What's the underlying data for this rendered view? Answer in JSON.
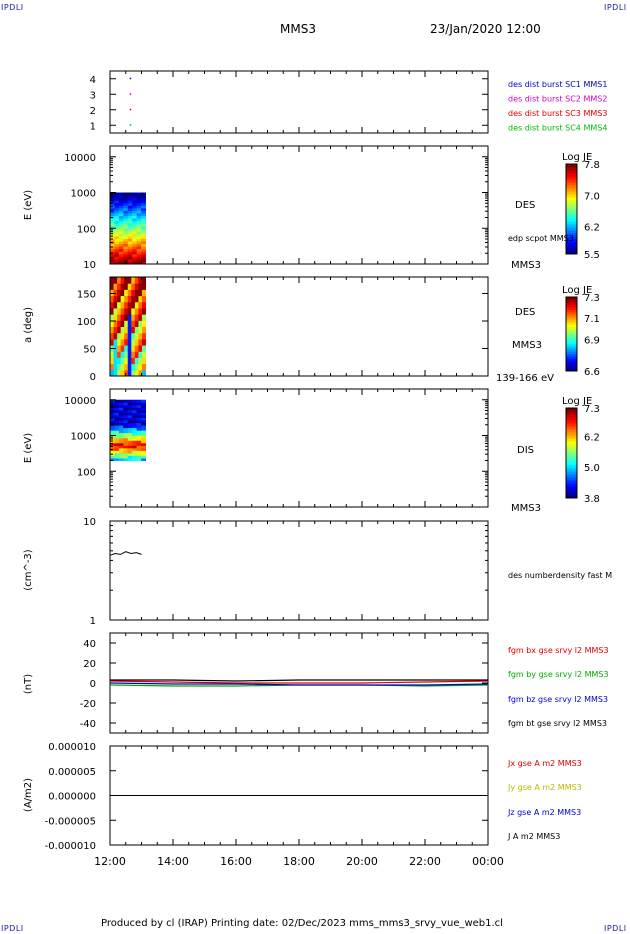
{
  "header": {
    "corner_label": "IPDLI",
    "spacecraft": "MMS3",
    "datetime": "23/Jan/2020 12:00"
  },
  "footer": {
    "text": "Produced by cl (IRAP)   Printing date: 02/Dec/2023   mms_mms3_srvy_vue_web1.cl"
  },
  "chart_data": [
    {
      "type": "scatter",
      "panel": "burst",
      "x_ticks": [
        "12:00",
        "14:00",
        "16:00",
        "18:00",
        "20:00",
        "22:00",
        "00:00"
      ],
      "xlim": [
        "12:00",
        "00:00"
      ],
      "y_ticks": [
        "1",
        "2",
        "3",
        "4"
      ],
      "ylim": [
        0.5,
        4.5
      ],
      "series": [
        {
          "name": "des dist burst SC1 MMS1",
          "color": "#0000cc",
          "x": [
            "12:30"
          ],
          "y": [
            4
          ]
        },
        {
          "name": "des dist burst SC2 MMS2",
          "color": "#cc00cc",
          "x": [
            "12:30"
          ],
          "y": [
            3
          ]
        },
        {
          "name": "des dist burst SC3 MMS3",
          "color": "#dd0000",
          "x": [
            "12:30"
          ],
          "y": [
            2
          ]
        },
        {
          "name": "des dist burst SC4 MMS4",
          "color": "#00bb00",
          "x": [
            "12:30"
          ],
          "y": [
            1
          ]
        }
      ]
    },
    {
      "type": "heatmap",
      "panel": "des-energy",
      "ylabel": "E (eV)",
      "yscale": "log",
      "y_ticks": [
        "10",
        "100",
        "1000",
        "10000"
      ],
      "ylim": [
        10,
        20000
      ],
      "x_range": [
        "12:00",
        "13:00"
      ],
      "labels": [
        "DES",
        "edp scpot MMS3",
        "MMS3"
      ],
      "colorbar": {
        "title": "Log JE",
        "ticks": [
          "7.8",
          "7.0",
          "6.2",
          "5.5"
        ],
        "range": [
          5.5,
          7.8
        ]
      }
    },
    {
      "type": "heatmap",
      "panel": "des-pitch",
      "ylabel": "a (deg)",
      "y_ticks": [
        "0",
        "50",
        "100",
        "150"
      ],
      "ylim": [
        0,
        180
      ],
      "x_range": [
        "12:00",
        "13:00"
      ],
      "labels": [
        "DES",
        "MMS3",
        "139-166 eV"
      ],
      "colorbar": {
        "title": "Log JE",
        "ticks": [
          "7.3",
          "7.1",
          "6.9",
          "6.6"
        ],
        "range": [
          6.6,
          7.3
        ]
      }
    },
    {
      "type": "heatmap",
      "panel": "dis-energy",
      "ylabel": "E (eV)",
      "yscale": "log",
      "y_ticks": [
        "100",
        "1000",
        "10000"
      ],
      "ylim": [
        10,
        20000
      ],
      "x_range": [
        "12:00",
        "13:00"
      ],
      "labels": [
        "DIS",
        "MMS3"
      ],
      "colorbar": {
        "title": "Log JE",
        "ticks": [
          "7.3",
          "6.2",
          "5.0",
          "3.8"
        ],
        "range": [
          3.8,
          7.3
        ]
      }
    },
    {
      "type": "line",
      "panel": "density",
      "ylabel": "(cm^-3)",
      "yscale": "log",
      "y_ticks": [
        "1",
        "10"
      ],
      "ylim": [
        1,
        10
      ],
      "series": [
        {
          "name": "des numberdensity fast M",
          "color": "#000000",
          "x": [
            "12:00",
            "12:10",
            "12:20",
            "12:30",
            "12:40",
            "12:50",
            "13:00"
          ],
          "y": [
            4.5,
            4.7,
            4.6,
            4.9,
            4.7,
            4.8,
            4.6
          ]
        }
      ]
    },
    {
      "type": "line",
      "panel": "magnetic-field",
      "ylabel": "(nT)",
      "y_ticks": [
        "-40",
        "-20",
        "0",
        "20",
        "40"
      ],
      "ylim": [
        -50,
        50
      ],
      "series": [
        {
          "name": "fgm bx gse srvy l2 MMS3",
          "color": "#dd0000",
          "x": [
            "12:00",
            "14:00",
            "16:00",
            "18:00",
            "20:00",
            "22:00",
            "00:00"
          ],
          "y": [
            2,
            1,
            0,
            0,
            0,
            1,
            2
          ]
        },
        {
          "name": "fgm by gse srvy l2 MMS3",
          "color": "#00aa00",
          "x": [
            "12:00",
            "14:00",
            "16:00",
            "18:00",
            "20:00",
            "22:00",
            "00:00"
          ],
          "y": [
            -2,
            -3,
            -3,
            -2,
            -2,
            -3,
            -2
          ]
        },
        {
          "name": "fgm bz gse srvy l2 MMS3",
          "color": "#0000cc",
          "x": [
            "12:00",
            "14:00",
            "16:00",
            "18:00",
            "20:00",
            "22:00",
            "00:00"
          ],
          "y": [
            0,
            -1,
            -1,
            -2,
            -2,
            -2,
            -1
          ]
        },
        {
          "name": "fgm bt gse srvy l2 MMS3",
          "color": "#000000",
          "x": [
            "12:00",
            "14:00",
            "16:00",
            "18:00",
            "20:00",
            "22:00",
            "00:00"
          ],
          "y": [
            3,
            3,
            2,
            3,
            3,
            3,
            3
          ]
        }
      ]
    },
    {
      "type": "line",
      "panel": "current-density",
      "ylabel": "(A/m2)",
      "y_ticks": [
        "-0.000010",
        "-0.000005",
        "0.000000",
        "0.000005",
        "0.000010"
      ],
      "ylim": [
        -1e-05,
        1e-05
      ],
      "x_ticks": [
        "12:00",
        "14:00",
        "16:00",
        "18:00",
        "20:00",
        "22:00",
        "00:00"
      ],
      "series": [
        {
          "name": "Jx gse A m2 MMS3",
          "color": "#dd0000"
        },
        {
          "name": "Jy gse A m2 MMS3",
          "color": "#bbbb00"
        },
        {
          "name": "Jz gse A m2 MMS3",
          "color": "#0000cc"
        },
        {
          "name": "J A m2 MMS3",
          "color": "#000000"
        }
      ]
    }
  ]
}
